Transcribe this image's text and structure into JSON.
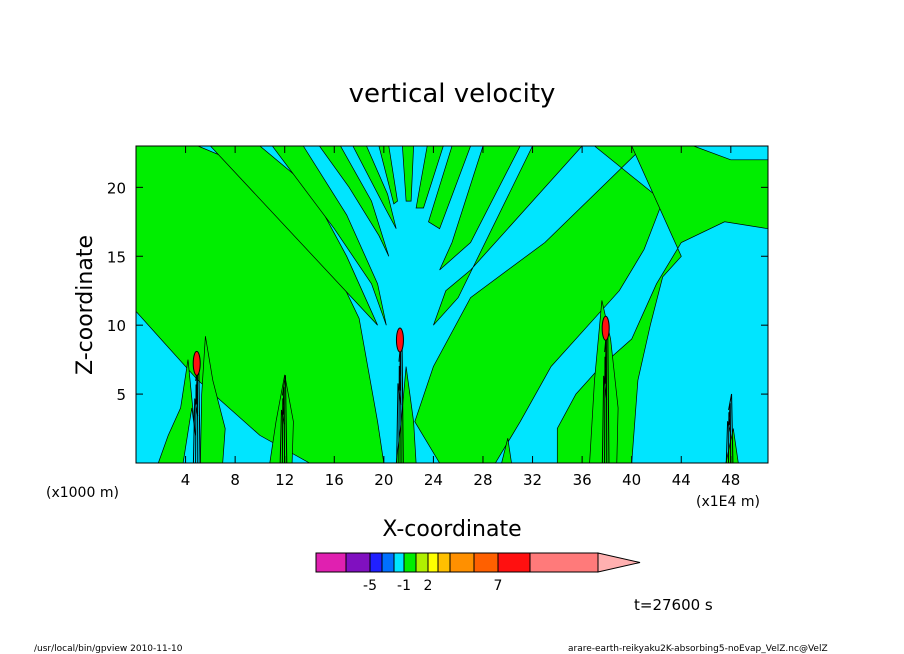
{
  "chart_data": {
    "type": "heatmap",
    "title": "vertical velocity",
    "xlabel": "X-coordinate",
    "ylabel": "Z-coordinate",
    "x_unit_left": "(x1000 m)",
    "x_unit_right": "(x1E4 m)",
    "xlim": [
      0,
      51
    ],
    "ylim": [
      0,
      23
    ],
    "x_ticks": [
      4,
      8,
      12,
      16,
      20,
      24,
      28,
      32,
      36,
      40,
      44,
      48
    ],
    "y_ticks": [
      5,
      10,
      15,
      20
    ],
    "background_field": {
      "negative_color": "#00e5ff",
      "positive_color": "#00ee00"
    },
    "updraft_cores": [
      {
        "x": 4.9,
        "z_top": 8.5
      },
      {
        "x": 11.9,
        "z_top": 7.0
      },
      {
        "x": 21.3,
        "z_top": 10.5
      },
      {
        "x": 37.9,
        "z_top": 11.5
      },
      {
        "x": 47.9,
        "z_top": 5.5
      }
    ],
    "colorbar": {
      "levels": [
        "-5",
        "-1",
        "2",
        "7"
      ],
      "colors": [
        "#e020b0",
        "#8010c0",
        "#2020ff",
        "#0070ff",
        "#00e5ff",
        "#00ee00",
        "#b0f000",
        "#ffff00",
        "#ffc000",
        "#ff9000",
        "#ff6000",
        "#ff1010",
        "#ff7a7a",
        "#ffb0b0"
      ]
    },
    "time_label": "t=27600 s"
  },
  "footer": {
    "left": "/usr/local/bin/gpview  2010-11-10",
    "right": "arare-earth-reikyaku2K-absorbing5-noEvap_VelZ.nc@VelZ"
  }
}
